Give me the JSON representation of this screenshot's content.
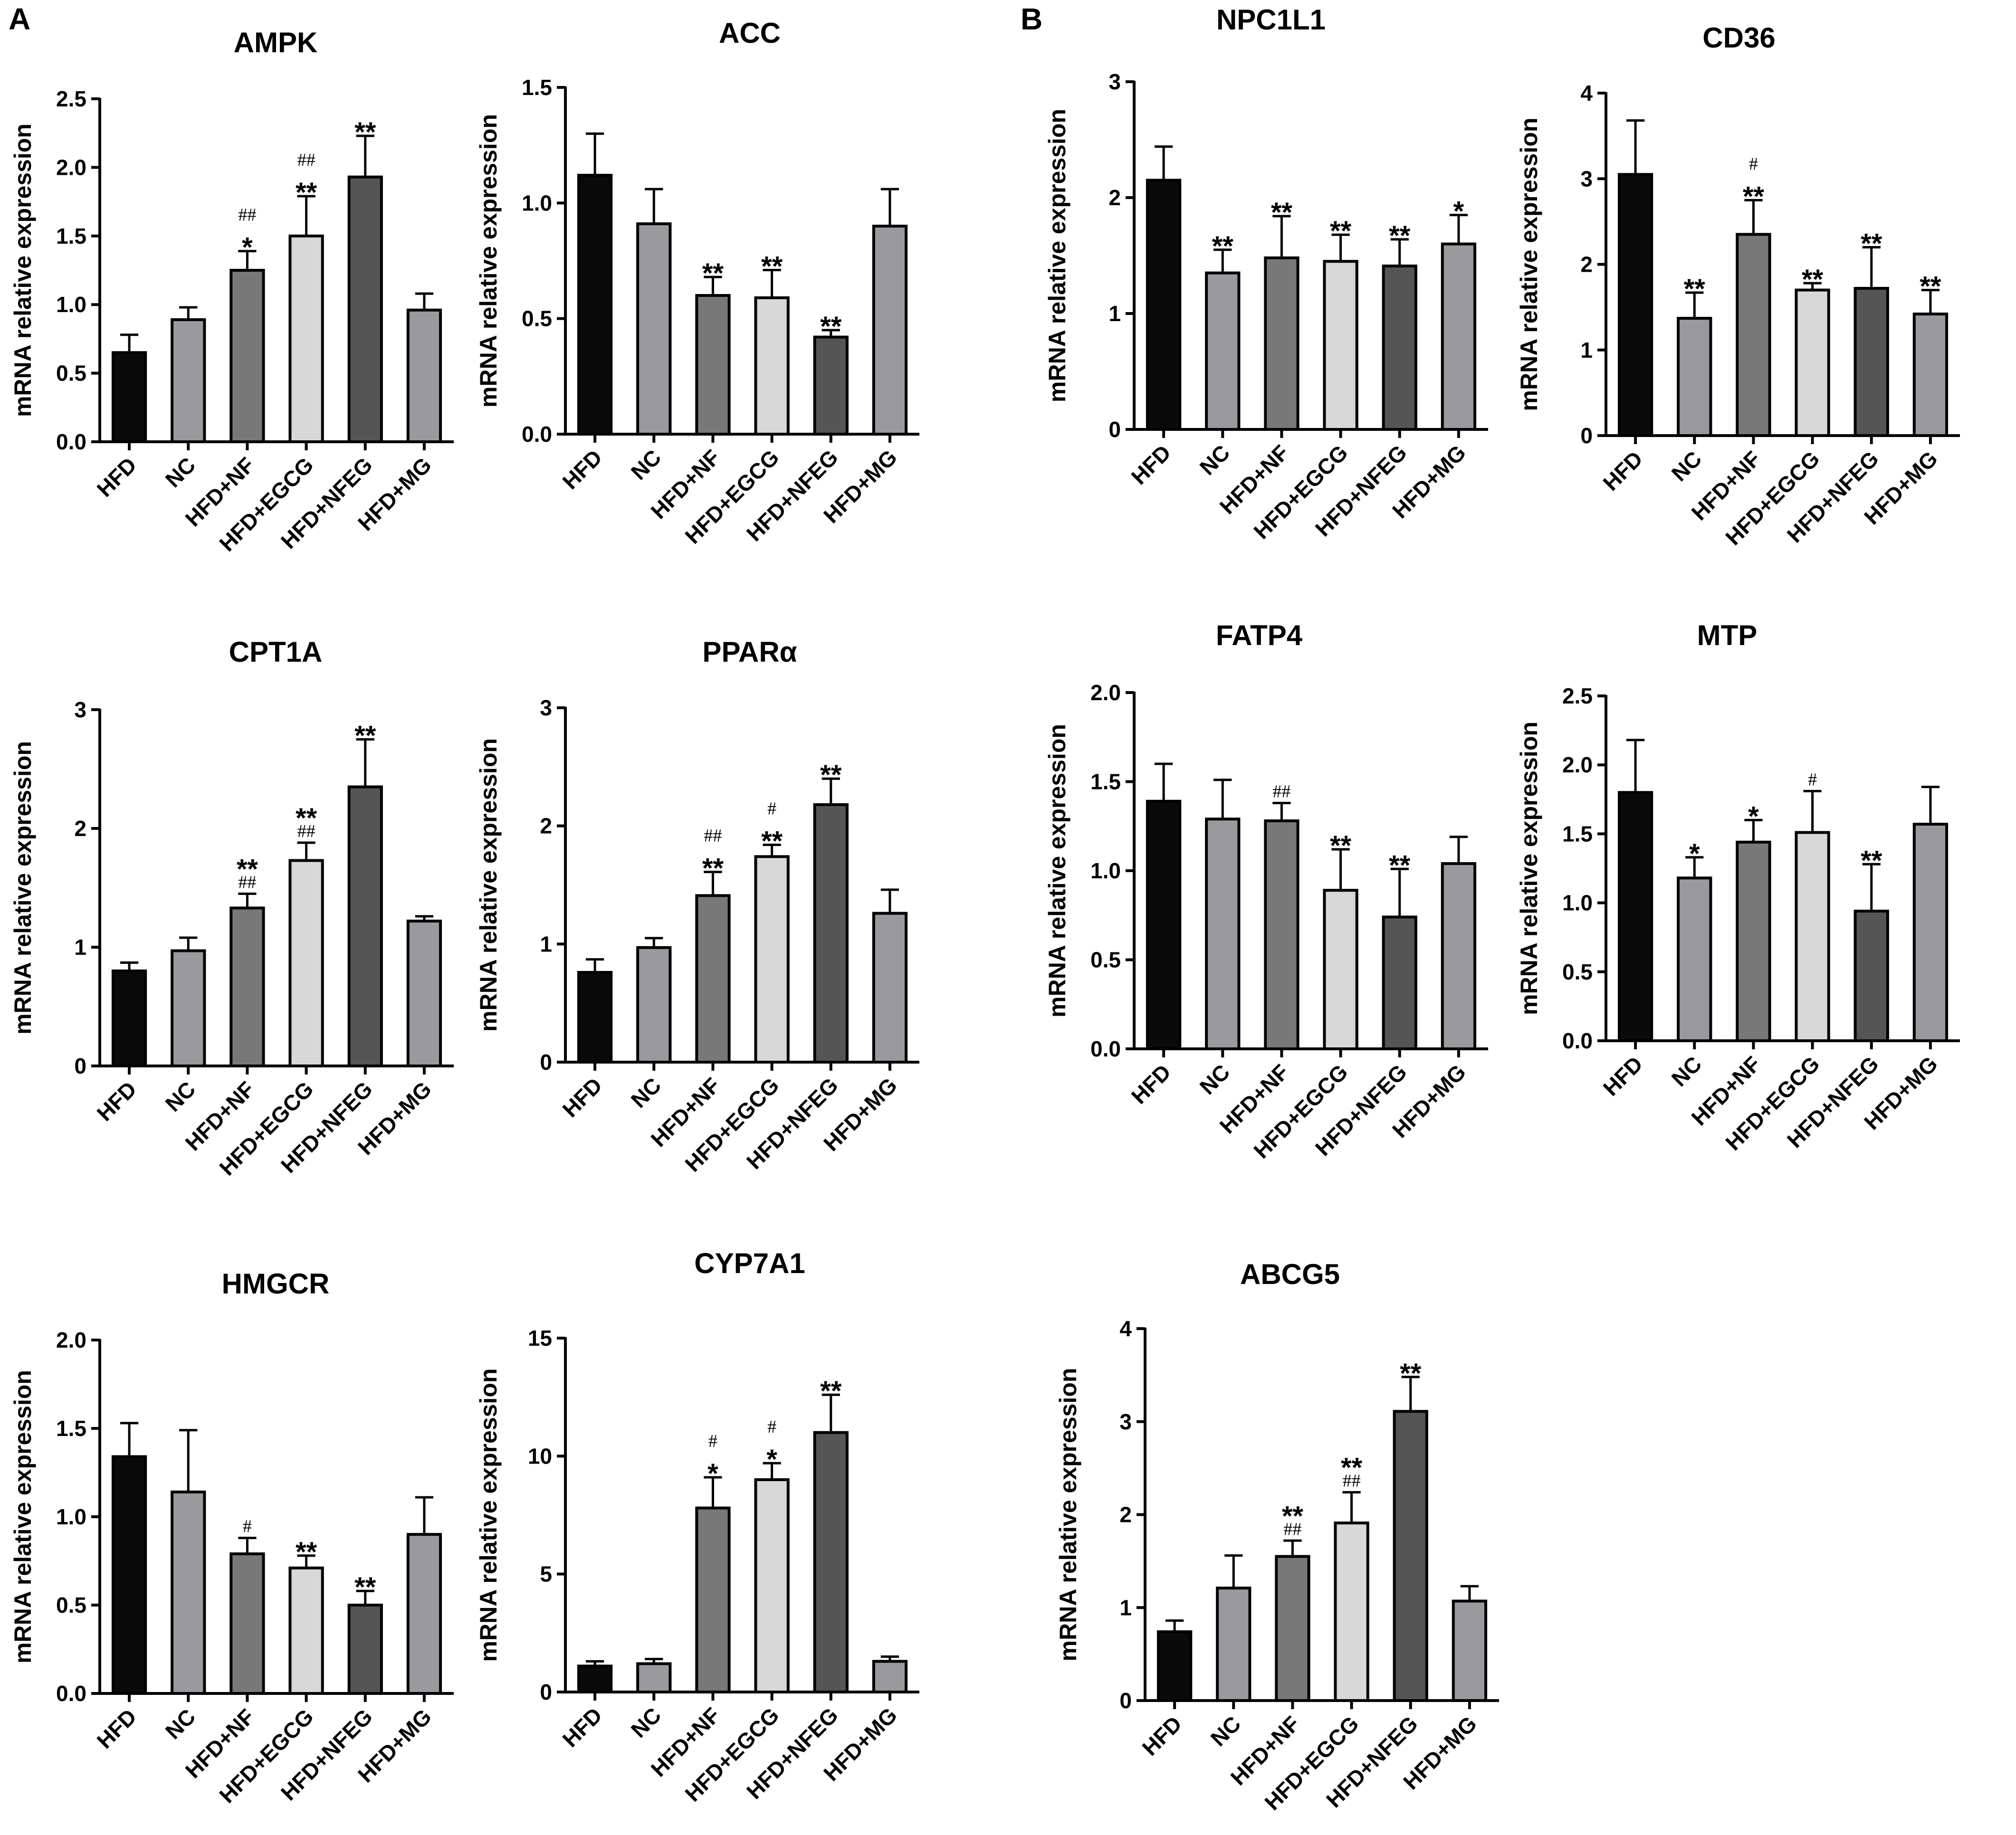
{
  "panel_labels": [
    "A",
    "B"
  ],
  "legend_colors": {
    "HFD": "#0a0a0a",
    "NC": "#9a9a9e",
    "HFD+NF": "#787878",
    "HFD+EGCG": "#d8d8d8",
    "HFD+NFEG": "#555555",
    "HFD+MG": "#9a9a9e"
  },
  "chart_data": [
    {
      "id": "ampk",
      "type": "bar",
      "title": "AMPK",
      "ylabel": "mRNA relative expression",
      "categories": [
        "HFD",
        "NC",
        "HFD+NF",
        "HFD+EGCG",
        "HFD+NFEG",
        "HFD+MG"
      ],
      "values": [
        0.65,
        0.89,
        1.25,
        1.5,
        1.93,
        0.96
      ],
      "errors": [
        0.13,
        0.09,
        0.14,
        0.29,
        0.3,
        0.12
      ],
      "ylim": [
        0,
        2.5
      ],
      "yticks": [
        "0.0",
        "0.5",
        "1.0",
        "1.5",
        "2.0",
        "2.5"
      ],
      "annotations": [
        {
          "bar": 2,
          "lines": [
            "##",
            "*"
          ]
        },
        {
          "bar": 3,
          "lines": [
            "##",
            "**"
          ]
        },
        {
          "bar": 4,
          "lines": [
            "**"
          ]
        }
      ]
    },
    {
      "id": "acc",
      "type": "bar",
      "title": "ACC",
      "ylabel": "mRNA relative expression",
      "categories": [
        "HFD",
        "NC",
        "HFD+NF",
        "HFD+EGCG",
        "HFD+NFEG",
        "HFD+MG"
      ],
      "values": [
        1.12,
        0.91,
        0.6,
        0.59,
        0.42,
        0.9
      ],
      "errors": [
        0.18,
        0.15,
        0.08,
        0.12,
        0.03,
        0.16
      ],
      "ylim": [
        0,
        1.5
      ],
      "yticks": [
        "0.0",
        "0.5",
        "1.0",
        "1.5"
      ],
      "annotations": [
        {
          "bar": 2,
          "lines": [
            "**"
          ]
        },
        {
          "bar": 3,
          "lines": [
            "**"
          ]
        },
        {
          "bar": 4,
          "lines": [
            "**"
          ]
        }
      ]
    },
    {
      "id": "npc1l1",
      "type": "bar",
      "title": "NPC1L1",
      "ylabel": "mRNA relative expression",
      "categories": [
        "HFD",
        "NC",
        "HFD+NF",
        "HFD+EGCG",
        "HFD+NFEG",
        "HFD+MG"
      ],
      "values": [
        2.15,
        1.35,
        1.48,
        1.45,
        1.41,
        1.6
      ],
      "errors": [
        0.29,
        0.2,
        0.36,
        0.23,
        0.23,
        0.25
      ],
      "ylim": [
        0,
        3
      ],
      "yticks": [
        "0",
        "1",
        "2",
        "3"
      ],
      "annotations": [
        {
          "bar": 1,
          "lines": [
            "**"
          ]
        },
        {
          "bar": 2,
          "lines": [
            "**"
          ]
        },
        {
          "bar": 3,
          "lines": [
            "**"
          ]
        },
        {
          "bar": 4,
          "lines": [
            "**"
          ]
        },
        {
          "bar": 5,
          "lines": [
            "*"
          ]
        }
      ]
    },
    {
      "id": "cd36",
      "type": "bar",
      "title": "CD36",
      "ylabel": "mRNA relative expression",
      "categories": [
        "HFD",
        "NC",
        "HFD+NF",
        "HFD+EGCG",
        "HFD+NFEG",
        "HFD+MG"
      ],
      "values": [
        3.05,
        1.37,
        2.35,
        1.7,
        1.72,
        1.42
      ],
      "errors": [
        0.63,
        0.3,
        0.4,
        0.08,
        0.48,
        0.28
      ],
      "ylim": [
        0,
        4
      ],
      "yticks": [
        "0",
        "1",
        "2",
        "3",
        "4"
      ],
      "annotations": [
        {
          "bar": 1,
          "lines": [
            "**"
          ]
        },
        {
          "bar": 2,
          "lines": [
            "#",
            "**"
          ]
        },
        {
          "bar": 3,
          "lines": [
            "**"
          ]
        },
        {
          "bar": 4,
          "lines": [
            "**"
          ]
        },
        {
          "bar": 5,
          "lines": [
            "**"
          ]
        }
      ]
    },
    {
      "id": "cpt1a",
      "type": "bar",
      "title": "CPT1A",
      "ylabel": "mRNA relative expression",
      "categories": [
        "HFD",
        "NC",
        "HFD+NF",
        "HFD+EGCG",
        "HFD+NFEG",
        "HFD+MG"
      ],
      "values": [
        0.8,
        0.97,
        1.33,
        1.73,
        2.35,
        1.22
      ],
      "errors": [
        0.07,
        0.11,
        0.12,
        0.15,
        0.4,
        0.04
      ],
      "ylim": [
        0,
        3
      ],
      "yticks": [
        "0",
        "1",
        "2",
        "3"
      ],
      "annotations": [
        {
          "bar": 2,
          "lines": [
            "**",
            "##"
          ]
        },
        {
          "bar": 3,
          "lines": [
            "**",
            "##"
          ]
        },
        {
          "bar": 4,
          "lines": [
            "**"
          ]
        }
      ]
    },
    {
      "id": "ppara",
      "type": "bar",
      "title": "PPARα",
      "ylabel": "mRNA relative expression",
      "categories": [
        "HFD",
        "NC",
        "HFD+NF",
        "HFD+EGCG",
        "HFD+NFEG",
        "HFD+MG"
      ],
      "values": [
        0.76,
        0.97,
        1.41,
        1.74,
        2.18,
        1.26
      ],
      "errors": [
        0.11,
        0.08,
        0.2,
        0.1,
        0.22,
        0.2
      ],
      "ylim": [
        0,
        3
      ],
      "yticks": [
        "0",
        "1",
        "2",
        "3"
      ],
      "annotations": [
        {
          "bar": 2,
          "lines": [
            "##",
            "**"
          ]
        },
        {
          "bar": 3,
          "lines": [
            "#",
            "**"
          ]
        },
        {
          "bar": 4,
          "lines": [
            "**"
          ]
        }
      ]
    },
    {
      "id": "fatp4",
      "type": "bar",
      "title": "FATP4",
      "ylabel": "mRNA relative expression",
      "categories": [
        "HFD",
        "NC",
        "HFD+NF",
        "HFD+EGCG",
        "HFD+NFEG",
        "HFD+MG"
      ],
      "values": [
        1.39,
        1.29,
        1.28,
        0.89,
        0.74,
        1.04
      ],
      "errors": [
        0.21,
        0.22,
        0.1,
        0.23,
        0.27,
        0.15
      ],
      "ylim": [
        0,
        2.0
      ],
      "yticks": [
        "0.0",
        "0.5",
        "1.0",
        "1.5",
        "2.0"
      ],
      "annotations": [
        {
          "bar": 2,
          "lines": [
            "##"
          ]
        },
        {
          "bar": 3,
          "lines": [
            "**"
          ]
        },
        {
          "bar": 4,
          "lines": [
            "**"
          ]
        }
      ]
    },
    {
      "id": "mtp",
      "type": "bar",
      "title": "MTP",
      "ylabel": "mRNA relative expression",
      "categories": [
        "HFD",
        "NC",
        "HFD+NF",
        "HFD+EGCG",
        "HFD+NFEG",
        "HFD+MG"
      ],
      "values": [
        1.8,
        1.18,
        1.44,
        1.51,
        0.94,
        1.57
      ],
      "errors": [
        0.38,
        0.15,
        0.16,
        0.3,
        0.34,
        0.27
      ],
      "ylim": [
        0,
        2.5
      ],
      "yticks": [
        "0.0",
        "0.5",
        "1.0",
        "1.5",
        "2.0",
        "2.5"
      ],
      "annotations": [
        {
          "bar": 1,
          "lines": [
            "*"
          ]
        },
        {
          "bar": 2,
          "lines": [
            "*"
          ]
        },
        {
          "bar": 3,
          "lines": [
            "#"
          ]
        },
        {
          "bar": 4,
          "lines": [
            "**"
          ]
        }
      ]
    },
    {
      "id": "hmgcr",
      "type": "bar",
      "title": "HMGCR",
      "ylabel": "mRNA relative expression",
      "categories": [
        "HFD",
        "NC",
        "HFD+NF",
        "HFD+EGCG",
        "HFD+NFEG",
        "HFD+MG"
      ],
      "values": [
        1.34,
        1.14,
        0.79,
        0.71,
        0.5,
        0.9
      ],
      "errors": [
        0.19,
        0.35,
        0.09,
        0.07,
        0.08,
        0.21
      ],
      "ylim": [
        0,
        2.0
      ],
      "yticks": [
        "0.0",
        "0.5",
        "1.0",
        "1.5",
        "2.0"
      ],
      "annotations": [
        {
          "bar": 2,
          "lines": [
            "#"
          ]
        },
        {
          "bar": 3,
          "lines": [
            "**"
          ]
        },
        {
          "bar": 4,
          "lines": [
            "**"
          ]
        }
      ]
    },
    {
      "id": "cyp7a1",
      "type": "bar",
      "title": "CYP7A1",
      "ylabel": "mRNA relative expression",
      "categories": [
        "HFD",
        "NC",
        "HFD+NF",
        "HFD+EGCG",
        "HFD+NFEG",
        "HFD+MG"
      ],
      "values": [
        1.1,
        1.2,
        7.8,
        9.0,
        11.0,
        1.3
      ],
      "errors": [
        0.2,
        0.2,
        1.3,
        0.7,
        1.6,
        0.2
      ],
      "ylim": [
        0,
        15
      ],
      "yticks": [
        "0",
        "5",
        "10",
        "15"
      ],
      "annotations": [
        {
          "bar": 2,
          "lines": [
            "#",
            "*"
          ]
        },
        {
          "bar": 3,
          "lines": [
            "#",
            "*"
          ]
        },
        {
          "bar": 4,
          "lines": [
            "**"
          ]
        }
      ]
    },
    {
      "id": "abcg5",
      "type": "bar",
      "title": "ABCG5",
      "ylabel": "mRNA relative expression",
      "categories": [
        "HFD",
        "NC",
        "HFD+NF",
        "HFD+EGCG",
        "HFD+NFEG",
        "HFD+MG"
      ],
      "values": [
        0.74,
        1.21,
        1.55,
        1.91,
        3.11,
        1.07
      ],
      "errors": [
        0.12,
        0.35,
        0.17,
        0.33,
        0.37,
        0.16
      ],
      "ylim": [
        0,
        4
      ],
      "yticks": [
        "0",
        "1",
        "2",
        "3",
        "4"
      ],
      "annotations": [
        {
          "bar": 2,
          "lines": [
            "**",
            "##"
          ]
        },
        {
          "bar": 3,
          "lines": [
            "**",
            "##"
          ]
        },
        {
          "bar": 4,
          "lines": [
            "**"
          ]
        }
      ]
    }
  ]
}
